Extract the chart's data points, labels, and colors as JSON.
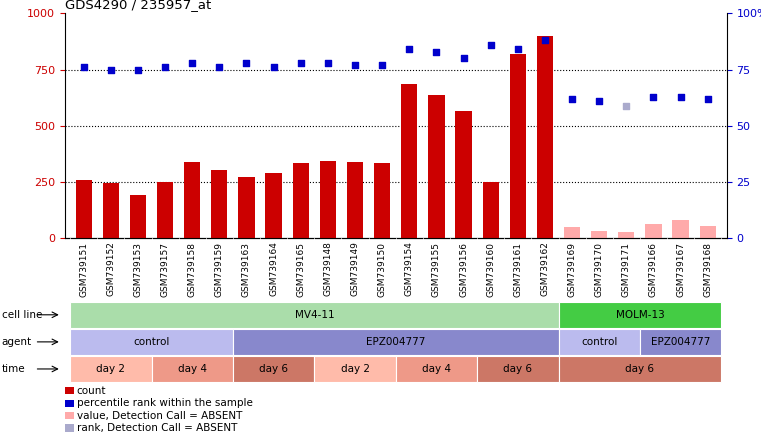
{
  "title": "GDS4290 / 235957_at",
  "samples": [
    "GSM739151",
    "GSM739152",
    "GSM739153",
    "GSM739157",
    "GSM739158",
    "GSM739159",
    "GSM739163",
    "GSM739164",
    "GSM739165",
    "GSM739148",
    "GSM739149",
    "GSM739150",
    "GSM739154",
    "GSM739155",
    "GSM739156",
    "GSM739160",
    "GSM739161",
    "GSM739162",
    "GSM739169",
    "GSM739170",
    "GSM739171",
    "GSM739166",
    "GSM739167",
    "GSM739168"
  ],
  "bar_values": [
    260,
    245,
    195,
    250,
    340,
    305,
    275,
    290,
    335,
    345,
    340,
    335,
    685,
    635,
    565,
    250,
    820,
    900,
    50,
    35,
    30,
    65,
    80,
    55
  ],
  "bar_absent": [
    false,
    false,
    false,
    false,
    false,
    false,
    false,
    false,
    false,
    false,
    false,
    false,
    false,
    false,
    false,
    false,
    false,
    false,
    true,
    true,
    true,
    true,
    true,
    true
  ],
  "rank_values": [
    76,
    75,
    75,
    76,
    78,
    76,
    78,
    76,
    78,
    78,
    77,
    77,
    84,
    83,
    80,
    86,
    84,
    88,
    62,
    61,
    59,
    63,
    63,
    62
  ],
  "rank_absent_flags": [
    false,
    false,
    false,
    false,
    false,
    false,
    false,
    false,
    false,
    false,
    false,
    false,
    false,
    false,
    false,
    false,
    false,
    false,
    false,
    false,
    true,
    false,
    false,
    false
  ],
  "bar_color": "#cc0000",
  "bar_absent_color": "#ffaaaa",
  "rank_color": "#0000cc",
  "rank_absent_color": "#aaaacc",
  "ylim_left": [
    0,
    1000
  ],
  "ylim_right": [
    0,
    100
  ],
  "yticks_left": [
    0,
    250,
    500,
    750,
    1000
  ],
  "yticks_right": [
    0,
    25,
    50,
    75,
    100
  ],
  "cell_line_groups": [
    {
      "label": "MV4-11",
      "start": 0,
      "end": 18,
      "color": "#aaddaa"
    },
    {
      "label": "MOLM-13",
      "start": 18,
      "end": 24,
      "color": "#44cc44"
    }
  ],
  "agent_groups": [
    {
      "label": "control",
      "start": 0,
      "end": 6,
      "color": "#bbbbee"
    },
    {
      "label": "EPZ004777",
      "start": 6,
      "end": 18,
      "color": "#8888cc"
    },
    {
      "label": "control",
      "start": 18,
      "end": 21,
      "color": "#bbbbee"
    },
    {
      "label": "EPZ004777",
      "start": 21,
      "end": 24,
      "color": "#8888cc"
    }
  ],
  "time_groups": [
    {
      "label": "day 2",
      "start": 0,
      "end": 3,
      "color": "#ffbbaa"
    },
    {
      "label": "day 4",
      "start": 3,
      "end": 6,
      "color": "#ee9988"
    },
    {
      "label": "day 6",
      "start": 6,
      "end": 9,
      "color": "#cc7766"
    },
    {
      "label": "day 2",
      "start": 9,
      "end": 12,
      "color": "#ffbbaa"
    },
    {
      "label": "day 4",
      "start": 12,
      "end": 15,
      "color": "#ee9988"
    },
    {
      "label": "day 6",
      "start": 15,
      "end": 18,
      "color": "#cc7766"
    },
    {
      "label": "day 6",
      "start": 18,
      "end": 24,
      "color": "#cc7766"
    }
  ],
  "legend_items": [
    {
      "label": "count",
      "color": "#cc0000"
    },
    {
      "label": "percentile rank within the sample",
      "color": "#0000cc"
    },
    {
      "label": "value, Detection Call = ABSENT",
      "color": "#ffaaaa"
    },
    {
      "label": "rank, Detection Call = ABSENT",
      "color": "#aaaacc"
    }
  ],
  "xtick_bg": "#d8d8d8",
  "plot_bg_color": "#ffffff",
  "row_label_color": "#000000"
}
